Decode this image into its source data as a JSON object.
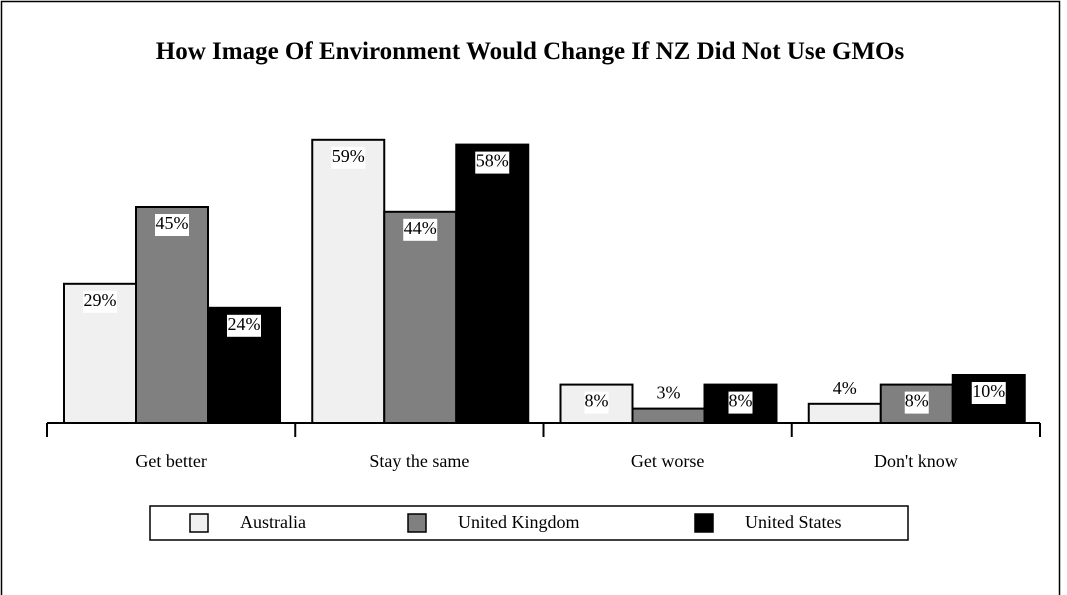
{
  "chart_data": {
    "type": "bar",
    "title": "How Image Of Environment Would Change If NZ Did Not Use GMOs",
    "categories": [
      "Get better",
      "Stay the same",
      "Get worse",
      "Don't know"
    ],
    "series": [
      {
        "name": "Australia",
        "color": "#f0f0f0",
        "values": [
          29,
          59,
          8,
          4
        ],
        "value_labels": [
          "29%",
          "59%",
          "8%",
          "4%"
        ]
      },
      {
        "name": "United Kingdom",
        "color": "#808080",
        "values": [
          45,
          44,
          3,
          8
        ],
        "value_labels": [
          "45%",
          "44%",
          "3%",
          "8%"
        ]
      },
      {
        "name": "United States",
        "color": "#000000",
        "values": [
          24,
          58,
          8,
          10
        ],
        "value_labels": [
          "24%",
          "58%",
          "8%",
          "10%"
        ]
      }
    ],
    "legend": "bottom"
  }
}
